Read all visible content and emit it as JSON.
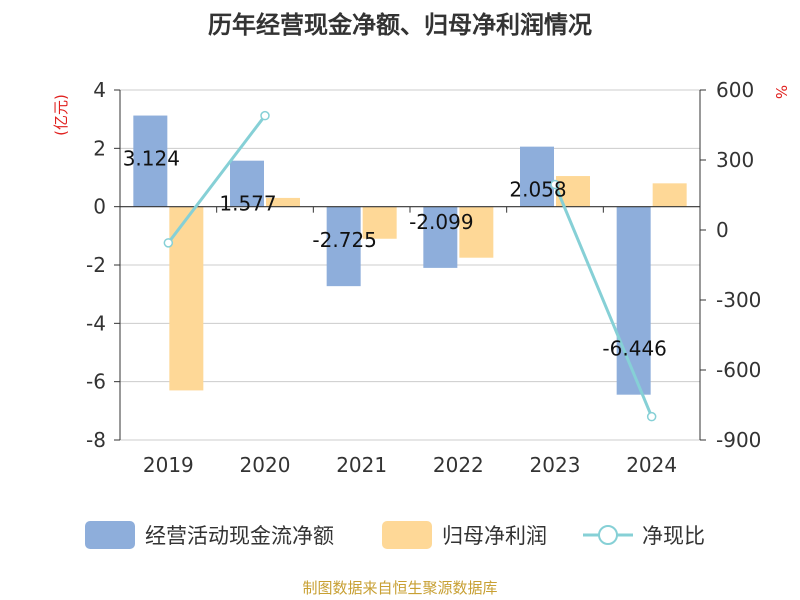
{
  "colors": {
    "cash_flow": "#8eaedb",
    "profit": "#fed897",
    "ratio": "#86d0d6",
    "grid": "#cccccc",
    "unit": "#e0201e",
    "source": "#c8a033"
  },
  "chart_data": {
    "type": "bar",
    "title": "历年经营现金净额、归母净利润情况",
    "categories": [
      "2019",
      "2020",
      "2021",
      "2022",
      "2023",
      "2024"
    ],
    "left_axis": {
      "unit": "(亿元)",
      "ylim": [
        -8,
        4
      ],
      "ticks": [
        4,
        2,
        0,
        -2,
        -4,
        -6,
        -8
      ]
    },
    "right_axis": {
      "unit": "%",
      "ylim": [
        -900,
        600
      ],
      "ticks": [
        600,
        300,
        0,
        -300,
        -600,
        -900
      ]
    },
    "series": [
      {
        "name": "经营活动现金流净额",
        "type": "bar",
        "axis": "left",
        "values": [
          3.124,
          1.577,
          -2.725,
          -2.099,
          2.058,
          -6.446
        ],
        "labels": [
          "3.124",
          "1.577",
          "-2.725",
          "-2.099",
          "2.058",
          "-6.446"
        ]
      },
      {
        "name": "归母净利润",
        "type": "bar",
        "axis": "left",
        "values": [
          -6.3,
          0.3,
          -1.1,
          -1.75,
          1.05,
          0.8
        ]
      },
      {
        "name": "净现比",
        "type": "line",
        "axis": "right",
        "values": [
          -55,
          490,
          null,
          null,
          195,
          -800
        ]
      }
    ],
    "grid": true,
    "legend_position": "bottom",
    "source": "制图数据来自恒生聚源数据库"
  }
}
